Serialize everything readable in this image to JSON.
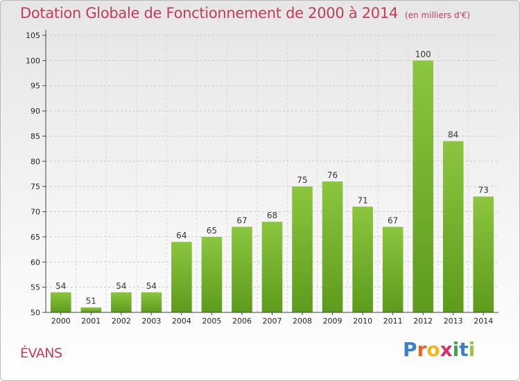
{
  "header": {
    "title": "Dotation Globale de Fonctionnement de 2000 à 2014",
    "subtitle": "(en milliers d'€)"
  },
  "footer": {
    "commune": "ÉVANS",
    "logo_letters": [
      {
        "ch": "P",
        "color": "#3a7fd0"
      },
      {
        "ch": "r",
        "color": "#e8622a"
      },
      {
        "ch": "o",
        "color": "#f1b521"
      },
      {
        "ch": "x",
        "color": "#d8306c"
      },
      {
        "ch": "i",
        "color": "#3aa84a"
      },
      {
        "ch": "t",
        "color": "#3a7fd0"
      },
      {
        "ch": "i",
        "color": "#9bc43a"
      }
    ]
  },
  "chart_data": {
    "type": "bar",
    "categories": [
      "2000",
      "2001",
      "2002",
      "2003",
      "2004",
      "2005",
      "2006",
      "2007",
      "2008",
      "2009",
      "2010",
      "2011",
      "2012",
      "2013",
      "2014"
    ],
    "values": [
      54,
      51,
      54,
      54,
      64,
      65,
      67,
      68,
      75,
      76,
      71,
      67,
      100,
      84,
      73
    ],
    "data_labels": [
      "54",
      "51",
      "54",
      "54",
      "64",
      "65",
      "67",
      "68",
      "75",
      "76",
      "71",
      "67",
      "100",
      "84",
      "73"
    ],
    "title": "Dotation Globale de Fonctionnement de 2000 à 2014",
    "subtitle": "(en milliers d'€)",
    "xlabel": "",
    "ylabel": "",
    "ylim": [
      50,
      105
    ],
    "yticks": [
      50,
      55,
      60,
      65,
      70,
      75,
      80,
      85,
      90,
      95,
      100,
      105
    ],
    "grid": true,
    "bar_color": "#8cc63f",
    "bar_color_dark": "#5d9b1c"
  }
}
